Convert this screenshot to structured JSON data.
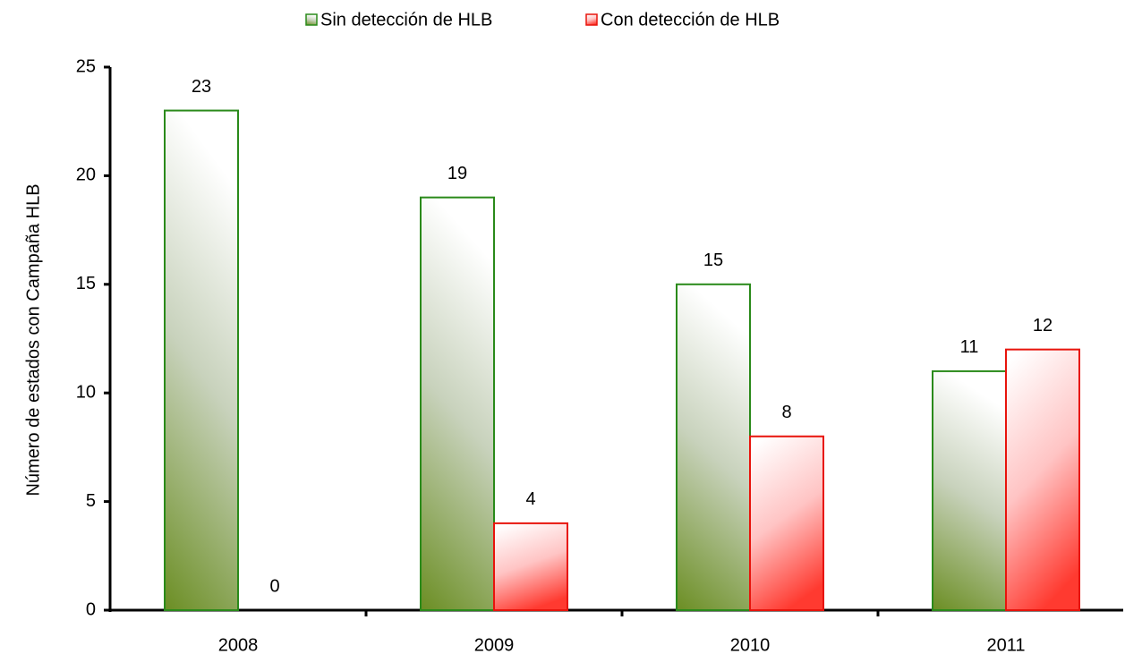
{
  "chart_data": {
    "type": "bar",
    "y_label": "Número de estados con Campaña HLB",
    "categories": [
      "2008",
      "2009",
      "2010",
      "2011"
    ],
    "series": [
      {
        "name": "Sin detección de HLB",
        "color": "#2a8a1a",
        "values": [
          23,
          19,
          15,
          11
        ]
      },
      {
        "name": "Con detección de HLB",
        "color": "#e8140c",
        "values": [
          0,
          4,
          8,
          12
        ]
      }
    ],
    "ylim": [
      0,
      25
    ],
    "yticks": [
      0,
      5,
      10,
      15,
      20,
      25
    ],
    "legend": "top"
  }
}
